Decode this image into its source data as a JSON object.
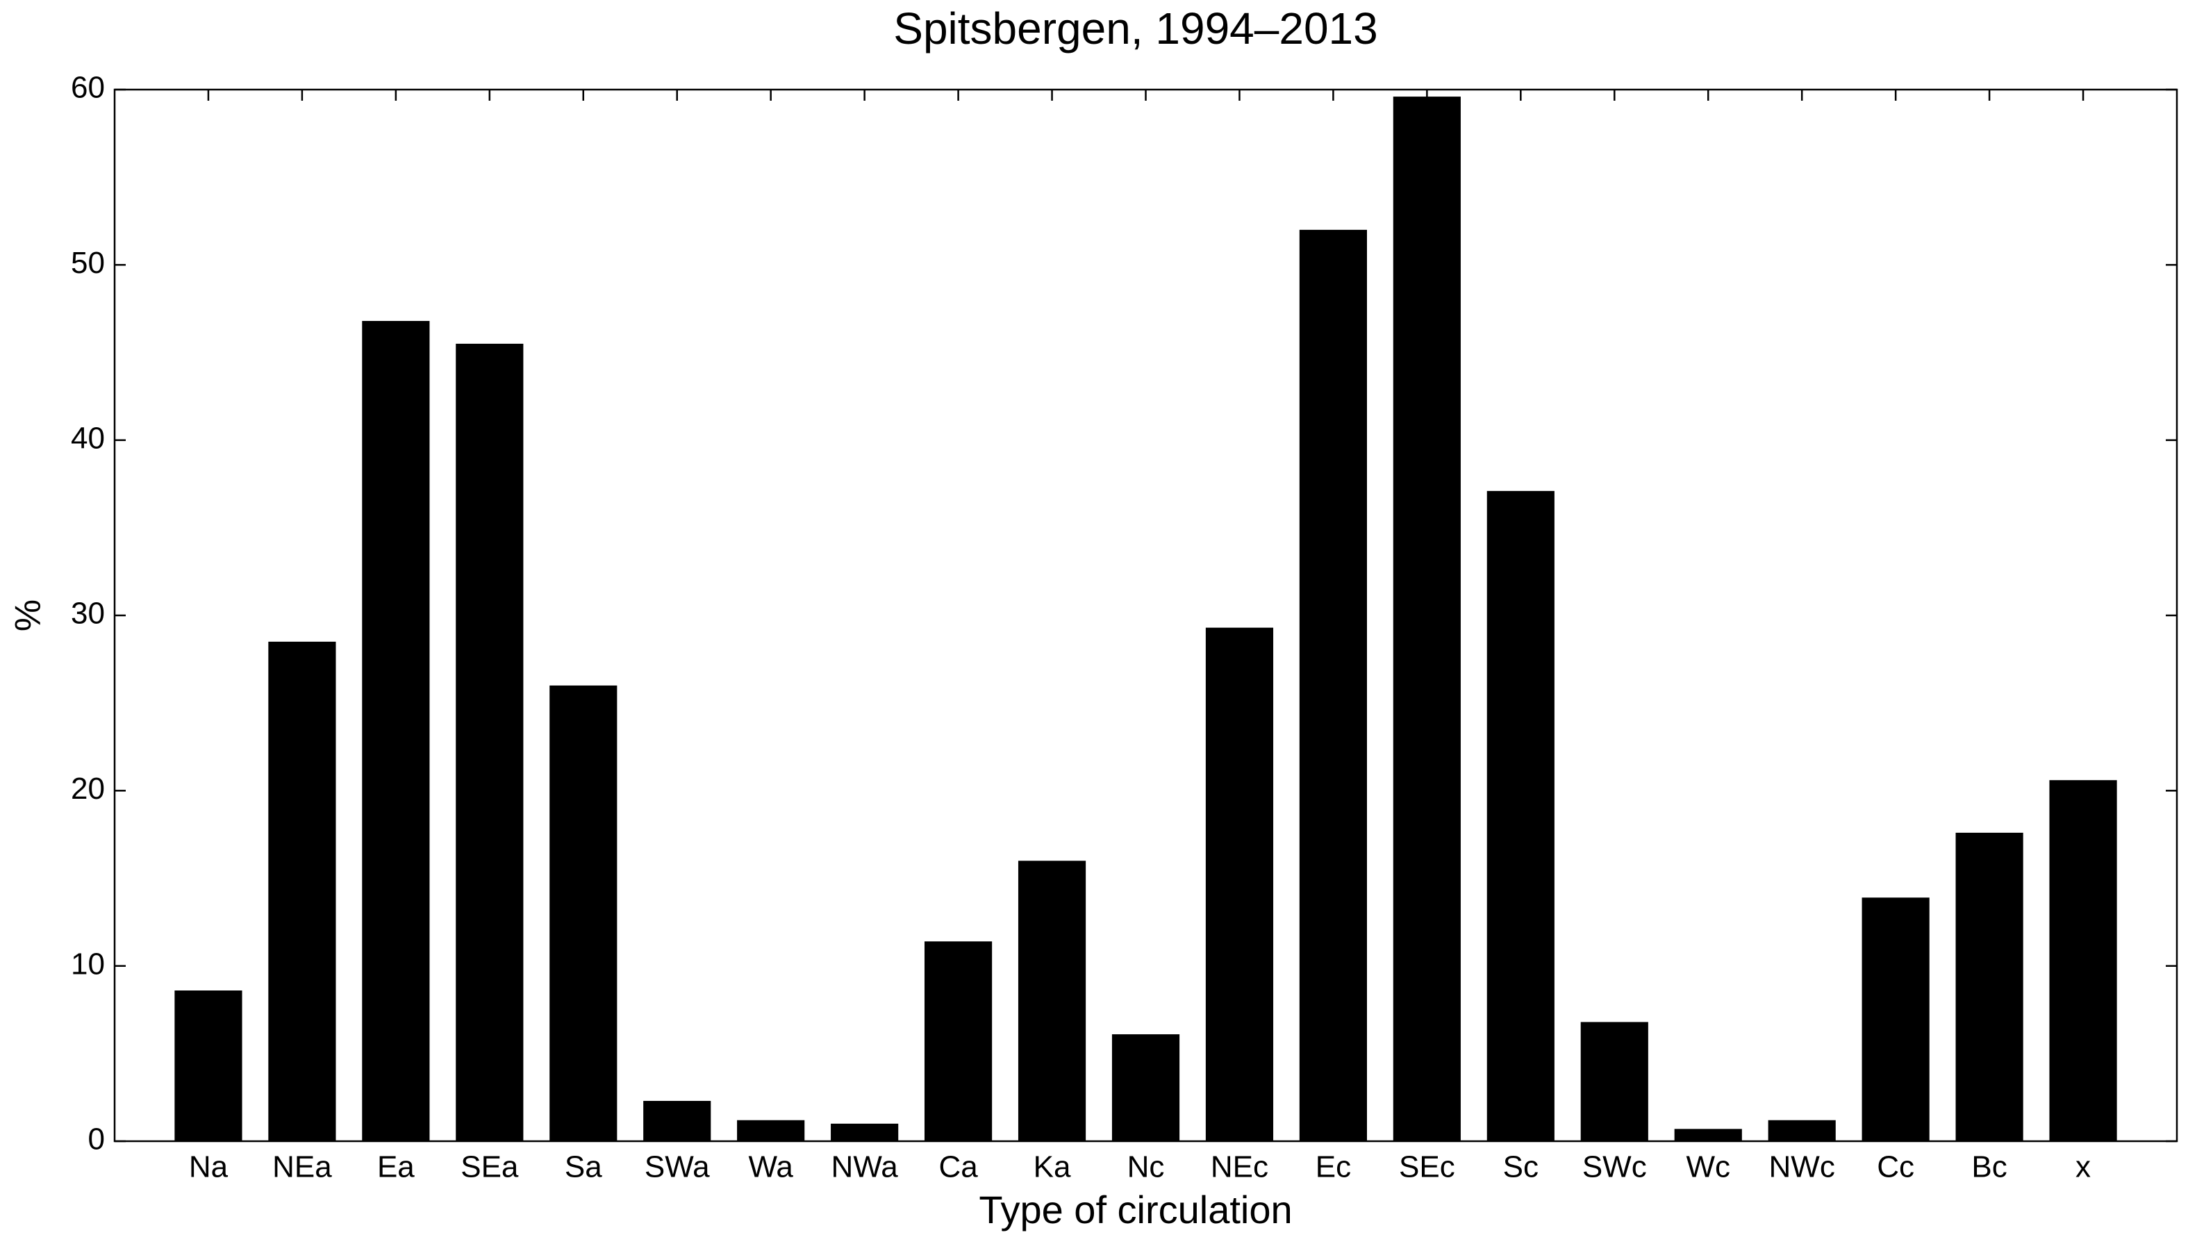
{
  "chart_data": {
    "type": "bar",
    "title": "Spitsbergen, 1994–2013",
    "x_label": "Type of circulation",
    "y_label": "%",
    "categories": [
      "Na",
      "NEa",
      "Ea",
      "SEa",
      "Sa",
      "SWa",
      "Wa",
      "NWa",
      "Ca",
      "Ka",
      "Nc",
      "NEc",
      "Ec",
      "SEc",
      "Sc",
      "SWc",
      "Wc",
      "NWc",
      "Cc",
      "Bc",
      "x"
    ],
    "values": [
      8.6,
      28.5,
      46.8,
      45.5,
      26.0,
      2.3,
      1.2,
      1.0,
      11.4,
      16.0,
      6.1,
      29.3,
      52.0,
      59.6,
      37.1,
      6.8,
      0.7,
      1.2,
      13.9,
      17.6,
      20.6
    ],
    "color": "#000000",
    "ylim": [
      0,
      60
    ],
    "yticks": [
      0,
      10,
      20,
      30,
      40,
      50,
      60
    ],
    "grid": false
  }
}
